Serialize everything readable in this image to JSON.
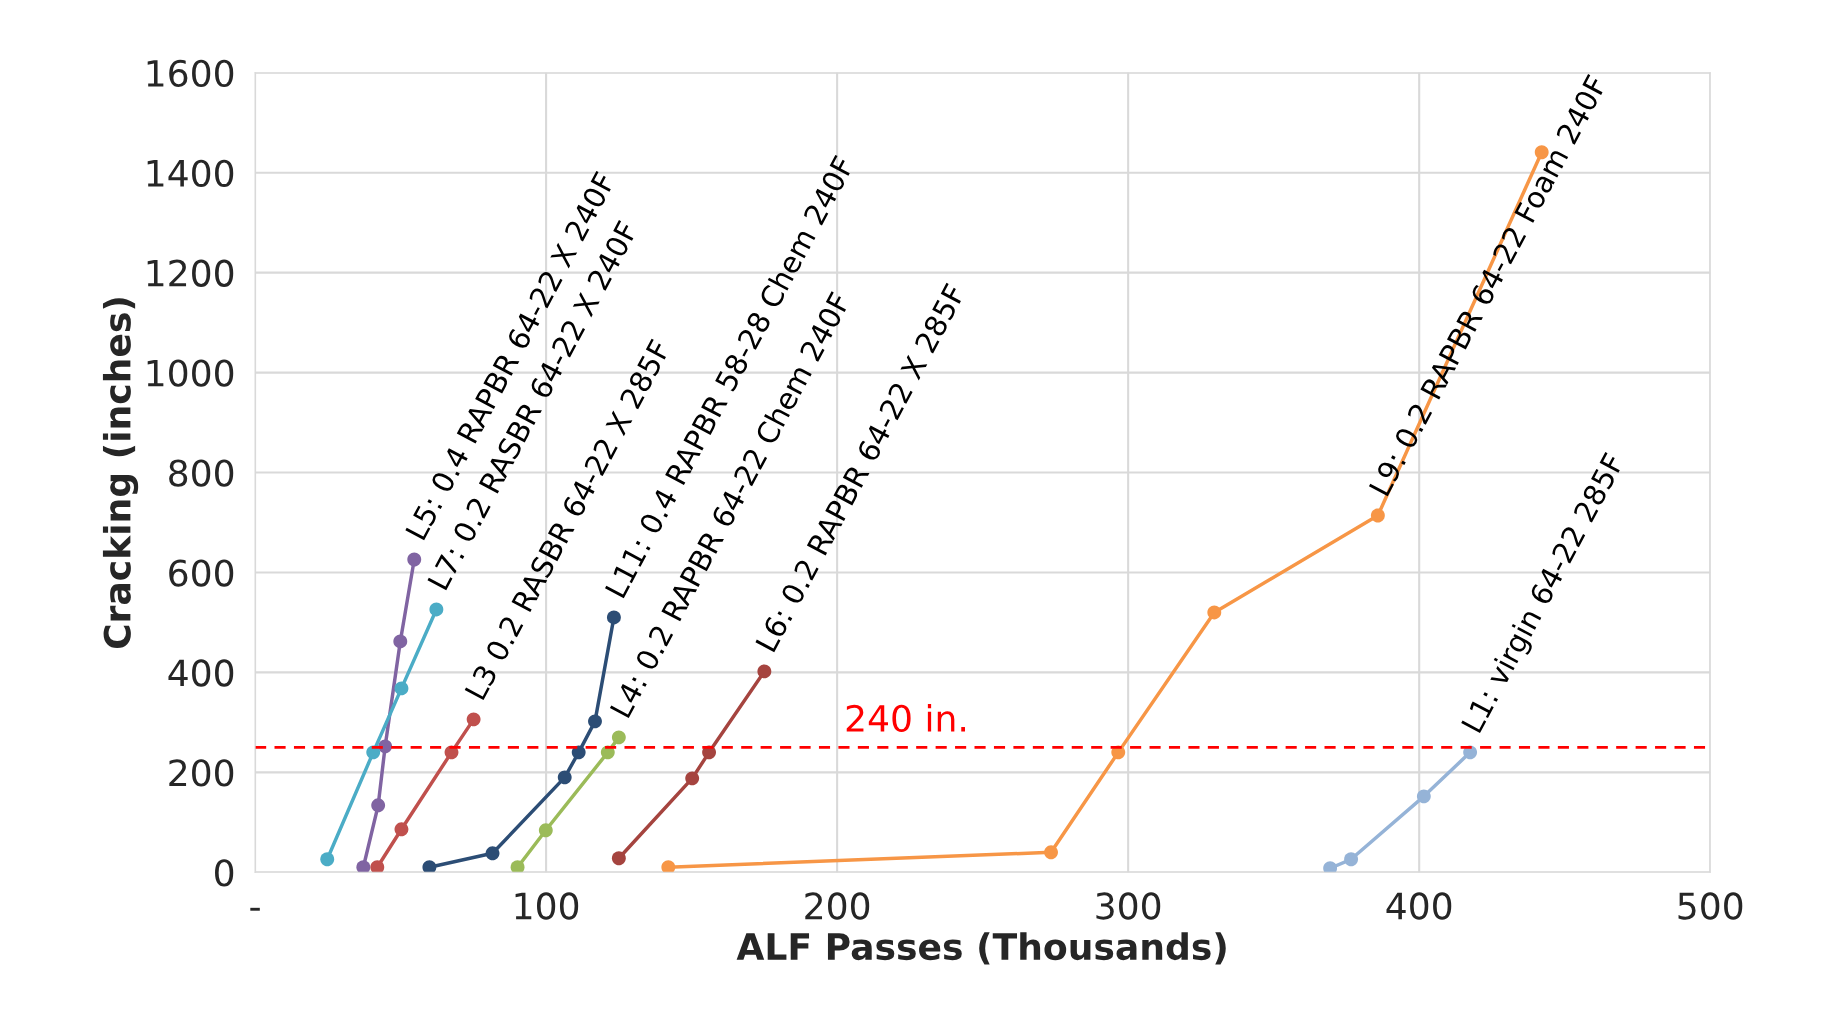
{
  "chart_data": {
    "type": "line",
    "xlabel": "ALF Passes (Thousands)",
    "ylabel": "Cracking (inches)",
    "xlim": [
      0,
      500
    ],
    "xticks": [
      {
        "value": 0,
        "label": "-"
      },
      100,
      200,
      300,
      400,
      500
    ],
    "ylim": [
      0,
      1600
    ],
    "yticks": [
      0,
      200,
      400,
      600,
      800,
      1000,
      1200,
      1400,
      1600
    ],
    "grid": true,
    "legend": false,
    "marker": "circle",
    "line_style": "solid",
    "ref_lines": [
      {
        "axis": "y",
        "value": 250,
        "label": "240 in.",
        "color": "#ff0000",
        "line_style": "dashed"
      }
    ],
    "series": [
      {
        "name": "L5: 0.4 RAPBR 64-22 X 240F",
        "color": "#8064a2",
        "x": [
          37.2,
          42.3,
          44.7,
          49.9,
          54.7
        ],
        "values": [
          10,
          134,
          252,
          462,
          626
        ]
      },
      {
        "name": "L7: 0.2 RASBR 64-22 X 240F",
        "color": "#4bacc6",
        "x": [
          24.8,
          40.6,
          50.3,
          62.3
        ],
        "values": [
          26,
          240,
          368,
          526
        ]
      },
      {
        "name": "L3 0.2 RASBR 64-22 X 285F",
        "color": "#c0504d",
        "x": [
          42,
          50.3,
          67.5,
          75.1
        ],
        "values": [
          10,
          86,
          240,
          306
        ]
      },
      {
        "name": "L11: 0.4 RAPBR 58-28 Chem 240F",
        "color": "#2c4d75",
        "x": [
          59.9,
          81.6,
          106.4,
          111.2,
          116.8,
          123.3
        ],
        "values": [
          10,
          38,
          190,
          240,
          302,
          510
        ]
      },
      {
        "name": "L4: 0.2 RAPBR 64-22 Chem 240F",
        "color": "#9bbb59",
        "x": [
          90.2,
          99.9,
          121.2,
          125
        ],
        "values": [
          10,
          84,
          240,
          270
        ]
      },
      {
        "name": "L6: 0.2 RAPBR 64-22 X 285F",
        "color": "#a5443f",
        "x": [
          125,
          150.2,
          156,
          175
        ],
        "values": [
          28,
          188,
          240,
          402
        ]
      },
      {
        "name": "L9: 0.2 RAPBR 64-22 Foam 240F",
        "color": "#f79646",
        "x": [
          142,
          273.5,
          296.6,
          329.6,
          385.8,
          442.1
        ],
        "values": [
          10,
          40,
          240,
          520,
          714,
          1441
        ]
      },
      {
        "name": "L1: virgin 64-22 285F",
        "color": "#95b3d7",
        "x": [
          369.4,
          376.6,
          401.6,
          417.5
        ],
        "values": [
          8,
          26,
          152,
          240
        ]
      }
    ]
  }
}
